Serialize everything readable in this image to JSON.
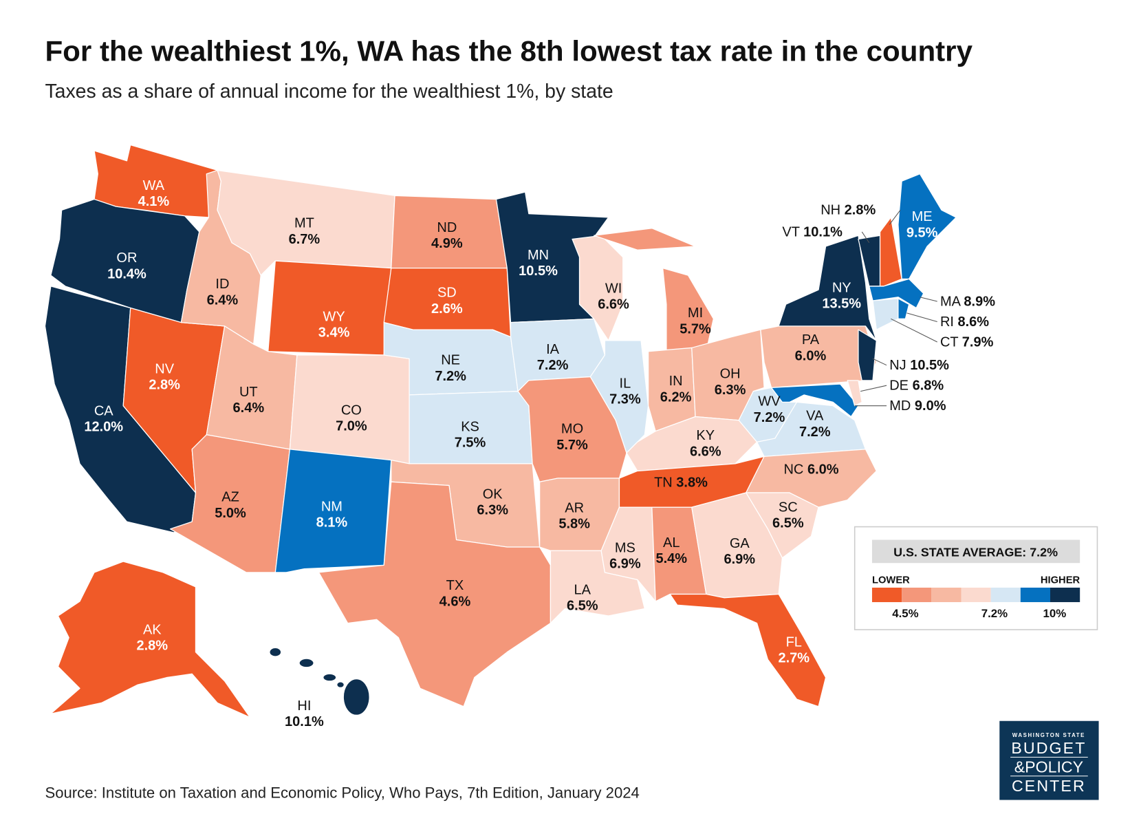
{
  "title": "For the wealthiest 1%, WA has the 8th lowest tax rate in the country",
  "subtitle": "Taxes as a share of annual income for the wealthiest 1%, by state",
  "source": "Source: Institute on Taxation and Economic Policy, Who Pays, 7th Edition, January 2024",
  "logo": {
    "line0": "WASHINGTON STATE",
    "line1": "BUDGET",
    "line2": "&POLICY",
    "line3": "CENTER",
    "color": "#0D3556"
  },
  "legend": {
    "average_label": "U.S. STATE AVERAGE: 7.2%",
    "lower": "LOWER",
    "higher": "HIGHER",
    "colors": [
      "#F05A28",
      "#F4977A",
      "#F7B9A2",
      "#FBDACF",
      "#D6E7F4",
      "#0571C0",
      "#0D2F4F"
    ],
    "ticks": [
      "4.5%",
      "7.2%",
      "10%"
    ]
  },
  "chart_data": {
    "type": "choropleth",
    "title": "For the wealthiest 1%, WA has the 8th lowest tax rate in the country",
    "subtitle": "Taxes as a share of annual income for the wealthiest 1%, by state",
    "states": [
      {
        "abbr": "WA",
        "value": "4.1%",
        "bin": 0
      },
      {
        "abbr": "OR",
        "value": "10.4%",
        "bin": 6
      },
      {
        "abbr": "CA",
        "value": "12.0%",
        "bin": 6
      },
      {
        "abbr": "NV",
        "value": "2.8%",
        "bin": 0
      },
      {
        "abbr": "ID",
        "value": "6.4%",
        "bin": 2
      },
      {
        "abbr": "MT",
        "value": "6.7%",
        "bin": 3
      },
      {
        "abbr": "WY",
        "value": "3.4%",
        "bin": 0
      },
      {
        "abbr": "UT",
        "value": "6.4%",
        "bin": 2
      },
      {
        "abbr": "CO",
        "value": "7.0%",
        "bin": 3
      },
      {
        "abbr": "AZ",
        "value": "5.0%",
        "bin": 1
      },
      {
        "abbr": "NM",
        "value": "8.1%",
        "bin": 5
      },
      {
        "abbr": "ND",
        "value": "4.9%",
        "bin": 1
      },
      {
        "abbr": "SD",
        "value": "2.6%",
        "bin": 0
      },
      {
        "abbr": "NE",
        "value": "7.2%",
        "bin": 4
      },
      {
        "abbr": "KS",
        "value": "7.5%",
        "bin": 4
      },
      {
        "abbr": "OK",
        "value": "6.3%",
        "bin": 2
      },
      {
        "abbr": "TX",
        "value": "4.6%",
        "bin": 1
      },
      {
        "abbr": "MN",
        "value": "10.5%",
        "bin": 6
      },
      {
        "abbr": "IA",
        "value": "7.2%",
        "bin": 4
      },
      {
        "abbr": "MO",
        "value": "5.7%",
        "bin": 1
      },
      {
        "abbr": "AR",
        "value": "5.8%",
        "bin": 2
      },
      {
        "abbr": "LA",
        "value": "6.5%",
        "bin": 3
      },
      {
        "abbr": "MS",
        "value": "6.9%",
        "bin": 3
      },
      {
        "abbr": "AL",
        "value": "5.4%",
        "bin": 1
      },
      {
        "abbr": "WI",
        "value": "6.6%",
        "bin": 3
      },
      {
        "abbr": "IL",
        "value": "7.3%",
        "bin": 4
      },
      {
        "abbr": "MI",
        "value": "5.7%",
        "bin": 1
      },
      {
        "abbr": "IN",
        "value": "6.2%",
        "bin": 2
      },
      {
        "abbr": "OH",
        "value": "6.3%",
        "bin": 2
      },
      {
        "abbr": "KY",
        "value": "6.6%",
        "bin": 3
      },
      {
        "abbr": "TN",
        "value": "3.8%",
        "bin": 0
      },
      {
        "abbr": "WV",
        "value": "7.2%",
        "bin": 4
      },
      {
        "abbr": "VA",
        "value": "7.2%",
        "bin": 4
      },
      {
        "abbr": "NC",
        "value": "6.0%",
        "bin": 2
      },
      {
        "abbr": "SC",
        "value": "6.5%",
        "bin": 3
      },
      {
        "abbr": "GA",
        "value": "6.9%",
        "bin": 3
      },
      {
        "abbr": "FL",
        "value": "2.7%",
        "bin": 0
      },
      {
        "abbr": "PA",
        "value": "6.0%",
        "bin": 2
      },
      {
        "abbr": "NY",
        "value": "13.5%",
        "bin": 6
      },
      {
        "abbr": "NJ",
        "value": "10.5%",
        "bin": 6
      },
      {
        "abbr": "MD",
        "value": "9.0%",
        "bin": 5
      },
      {
        "abbr": "DE",
        "value": "6.8%",
        "bin": 3
      },
      {
        "abbr": "VT",
        "value": "10.1%",
        "bin": 6
      },
      {
        "abbr": "NH",
        "value": "2.8%",
        "bin": 0
      },
      {
        "abbr": "ME",
        "value": "9.5%",
        "bin": 5
      },
      {
        "abbr": "MA",
        "value": "8.9%",
        "bin": 5
      },
      {
        "abbr": "RI",
        "value": "8.6%",
        "bin": 5
      },
      {
        "abbr": "CT",
        "value": "7.9%",
        "bin": 4
      },
      {
        "abbr": "AK",
        "value": "2.8%",
        "bin": 0
      },
      {
        "abbr": "HI",
        "value": "10.1%",
        "bin": 6
      }
    ]
  }
}
